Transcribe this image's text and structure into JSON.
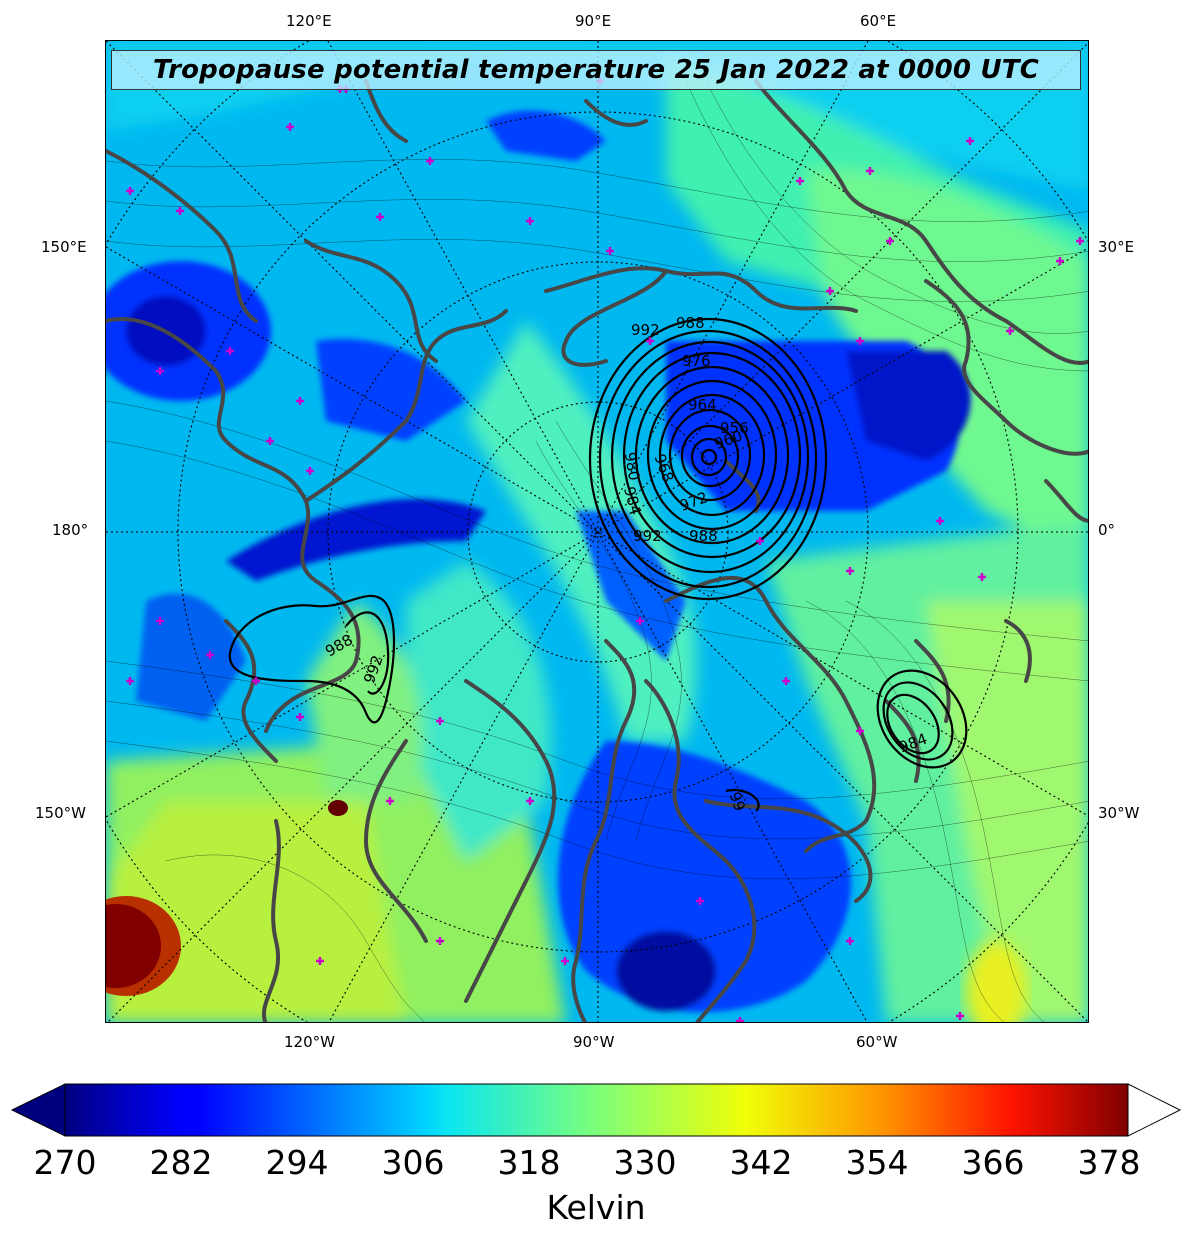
{
  "title": "Tropopause potential temperature 25 Jan 2022 at 0000 UTC",
  "top_lon_labels": [
    "120°E",
    "90°E",
    "60°E"
  ],
  "bottom_lon_labels": [
    "120°W",
    "90°W",
    "60°W"
  ],
  "left_labels": [
    "150°E",
    "180°",
    "150°W"
  ],
  "right_labels": [
    "30°E",
    "0°",
    "30°W"
  ],
  "pressure_contour_labels": [
    "992",
    "988",
    "984",
    "980",
    "976",
    "972",
    "968",
    "964",
    "960",
    "956",
    "988",
    "992",
    "988",
    "984",
    "992",
    "99"
  ],
  "colorbar": {
    "ticks": [
      "270",
      "282",
      "294",
      "306",
      "318",
      "330",
      "342",
      "354",
      "366",
      "378"
    ],
    "min": 270,
    "max": 381,
    "label": "Kelvin",
    "colormap": "jet",
    "extend": "both"
  },
  "colors": {
    "coastline": "#474747",
    "station_marker": "#cc00cc",
    "pressure_contour": "#000000"
  }
}
